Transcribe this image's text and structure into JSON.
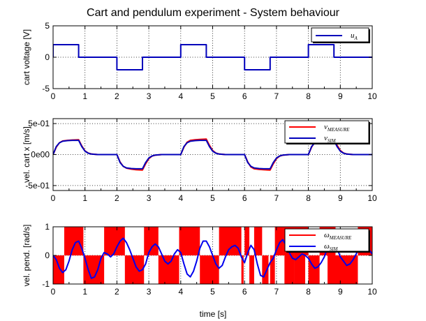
{
  "title": "Cart and pendulum experiment - System behaviour",
  "xlabel": "time [s]",
  "colors": {
    "blue": "#0000bb",
    "red": "#ff0000",
    "frame": "#000000",
    "grid": "#000000"
  },
  "chart_data": [
    {
      "type": "line",
      "ylabel": "cart voltage [V]",
      "xlim": [
        0,
        10
      ],
      "ylim": [
        -5,
        5
      ],
      "xticks": [
        0,
        1,
        2,
        3,
        4,
        5,
        6,
        7,
        8,
        9,
        10
      ],
      "xtick_labels": [
        "0",
        "1",
        "2",
        "3",
        "4",
        "5",
        "6",
        "7",
        "8",
        "9",
        "10"
      ],
      "yticks": [
        -5,
        0,
        5
      ],
      "ytick_labels": [
        "-5",
        "0",
        "5"
      ],
      "grid": true,
      "legend": "top-right",
      "series": [
        {
          "name": "u_A",
          "legend_main": "u",
          "legend_sub": "A",
          "color": "#0000bb",
          "x": [
            0,
            0,
            0.8,
            0.8,
            2.0,
            2.0,
            2.8,
            2.8,
            4.0,
            4.0,
            4.8,
            4.8,
            6.0,
            6.0,
            6.8,
            6.8,
            8.0,
            8.0,
            8.8,
            8.8,
            10
          ],
          "y": [
            0,
            2,
            2,
            0,
            0,
            -2,
            -2,
            0,
            0,
            2,
            2,
            0,
            0,
            -2,
            -2,
            0,
            0,
            2,
            2,
            0,
            0
          ]
        }
      ]
    },
    {
      "type": "line",
      "ylabel": "vel. cart x [m/s]",
      "xlim": [
        0,
        10
      ],
      "ylim": [
        -0.58,
        0.58
      ],
      "xticks": [
        0,
        1,
        2,
        3,
        4,
        5,
        6,
        7,
        8,
        9,
        10
      ],
      "xtick_labels": [
        "0",
        "1",
        "2",
        "3",
        "4",
        "5",
        "6",
        "7",
        "8",
        "9",
        "10"
      ],
      "yticks": [
        -0.5,
        0,
        0.5
      ],
      "ytick_labels": [
        "-5e-01",
        "0e00",
        "5e-01"
      ],
      "grid": true,
      "legend": "top-right",
      "series": [
        {
          "name": "v_MEASURE",
          "legend_main": "v",
          "legend_sub": "MEASURE",
          "color": "#ff0000",
          "x": [
            0,
            0.1,
            0.2,
            0.3,
            0.45,
            0.6,
            0.8,
            0.9,
            1.0,
            1.1,
            1.2,
            1.4,
            1.7,
            2.0,
            2.1,
            2.2,
            2.3,
            2.45,
            2.6,
            2.8,
            2.9,
            3.0,
            3.1,
            3.2,
            3.4,
            3.7,
            4.0,
            4.1,
            4.2,
            4.3,
            4.45,
            4.6,
            4.8,
            4.9,
            5.0,
            5.1,
            5.2,
            5.4,
            5.7,
            6.0,
            6.1,
            6.2,
            6.3,
            6.45,
            6.6,
            6.8,
            6.9,
            7.0,
            7.1,
            7.2,
            7.4,
            7.7,
            8.0,
            8.1,
            8.2,
            8.3,
            8.45,
            8.6,
            8.8,
            8.9,
            9.0,
            9.1,
            9.2,
            9.4,
            10
          ],
          "y": [
            0,
            0.12,
            0.19,
            0.22,
            0.23,
            0.235,
            0.24,
            0.14,
            0.06,
            0.025,
            0.01,
            0,
            0,
            0,
            -0.12,
            -0.19,
            -0.22,
            -0.235,
            -0.245,
            -0.25,
            -0.15,
            -0.065,
            -0.025,
            -0.01,
            0,
            0,
            0,
            0.12,
            0.2,
            0.23,
            0.24,
            0.245,
            0.25,
            0.15,
            0.065,
            0.025,
            0.01,
            0,
            0,
            0,
            -0.12,
            -0.2,
            -0.23,
            -0.24,
            -0.245,
            -0.25,
            -0.15,
            -0.065,
            -0.025,
            -0.01,
            0,
            0,
            0,
            0.12,
            0.2,
            0.23,
            0.24,
            0.245,
            0.25,
            0.15,
            0.065,
            0.025,
            0.01,
            0,
            0
          ]
        },
        {
          "name": "v_SIM",
          "legend_main": "v",
          "legend_sub": "SIM",
          "color": "#0000bb",
          "x": [
            0,
            0.1,
            0.2,
            0.3,
            0.45,
            0.6,
            0.8,
            0.9,
            1.0,
            1.1,
            1.2,
            1.4,
            1.7,
            2.0,
            2.1,
            2.2,
            2.3,
            2.45,
            2.6,
            2.8,
            2.9,
            3.0,
            3.1,
            3.2,
            3.4,
            3.7,
            4.0,
            4.1,
            4.2,
            4.3,
            4.45,
            4.6,
            4.8,
            4.9,
            5.0,
            5.1,
            5.2,
            5.4,
            5.7,
            6.0,
            6.1,
            6.2,
            6.3,
            6.45,
            6.6,
            6.8,
            6.9,
            7.0,
            7.1,
            7.2,
            7.4,
            7.7,
            8.0,
            8.1,
            8.2,
            8.3,
            8.45,
            8.6,
            8.8,
            8.9,
            9.0,
            9.1,
            9.2,
            9.4,
            10
          ],
          "y": [
            0,
            0.13,
            0.19,
            0.215,
            0.225,
            0.23,
            0.23,
            0.13,
            0.055,
            0.022,
            0.008,
            0,
            0,
            0,
            -0.13,
            -0.19,
            -0.215,
            -0.225,
            -0.23,
            -0.23,
            -0.13,
            -0.055,
            -0.022,
            -0.008,
            0,
            0,
            0,
            0.13,
            0.19,
            0.215,
            0.225,
            0.23,
            0.23,
            0.13,
            0.055,
            0.022,
            0.008,
            0,
            0,
            0,
            -0.13,
            -0.19,
            -0.215,
            -0.225,
            -0.23,
            -0.23,
            -0.13,
            -0.055,
            -0.022,
            -0.008,
            0,
            0,
            0,
            0.13,
            0.19,
            0.215,
            0.225,
            0.23,
            0.23,
            0.13,
            0.055,
            0.022,
            0.008,
            0,
            0
          ]
        }
      ]
    },
    {
      "type": "line",
      "ylabel": "vel. pend. [rad/s]",
      "xlim": [
        0,
        10
      ],
      "ylim": [
        -1,
        1
      ],
      "xticks": [
        0,
        1,
        2,
        3,
        4,
        5,
        6,
        7,
        8,
        9,
        10
      ],
      "xtick_labels": [
        "0",
        "1",
        "2",
        "3",
        "4",
        "5",
        "6",
        "7",
        "8",
        "9",
        "10"
      ],
      "yticks": [
        -1,
        0,
        1
      ],
      "ytick_labels": [
        "-1",
        "0",
        "1"
      ],
      "grid": true,
      "legend": "top-right",
      "series": [
        {
          "name": "ω_MEASURE",
          "legend_main": "ω",
          "legend_sub": "MEASURE",
          "color": "#ff0000",
          "style": "filled-bands",
          "segments": [
            {
              "x0": 0.0,
              "x1": 0.35,
              "y": -1
            },
            {
              "x0": 0.35,
              "x1": 0.95,
              "y": 1
            },
            {
              "x0": 0.95,
              "x1": 1.6,
              "y": -1
            },
            {
              "x0": 1.6,
              "x1": 2.25,
              "y": 1
            },
            {
              "x0": 2.25,
              "x1": 2.85,
              "y": -1
            },
            {
              "x0": 2.85,
              "x1": 3.3,
              "y": 1
            },
            {
              "x0": 3.3,
              "x1": 3.95,
              "y": -1
            },
            {
              "x0": 3.95,
              "x1": 4.6,
              "y": 1
            },
            {
              "x0": 4.6,
              "x1": 5.2,
              "y": -1
            },
            {
              "x0": 5.2,
              "x1": 5.9,
              "y": 1
            },
            {
              "x0": 5.9,
              "x1": 5.97,
              "y": -1
            },
            {
              "x0": 6.0,
              "x1": 6.15,
              "y": 1
            },
            {
              "x0": 6.15,
              "x1": 6.3,
              "y": -1
            },
            {
              "x0": 6.3,
              "x1": 6.55,
              "y": 1
            },
            {
              "x0": 6.55,
              "x1": 6.75,
              "y": -1
            },
            {
              "x0": 6.8,
              "x1": 6.95,
              "y": -1
            },
            {
              "x0": 6.95,
              "x1": 7.2,
              "y": 1
            },
            {
              "x0": 7.2,
              "x1": 7.55,
              "y": 1
            },
            {
              "x0": 7.55,
              "x1": 8.0,
              "y": 1
            },
            {
              "x0": 7.55,
              "x1": 7.9,
              "y": -1
            },
            {
              "x0": 8.0,
              "x1": 8.35,
              "y": -1
            },
            {
              "x0": 8.35,
              "x1": 8.85,
              "y": 1
            },
            {
              "x0": 8.85,
              "x1": 9.55,
              "y": -1
            },
            {
              "x0": 9.55,
              "x1": 10.0,
              "y": 1
            },
            {
              "x0": 7.25,
              "x1": 7.55,
              "y": -1
            },
            {
              "x0": 8.6,
              "x1": 9.05,
              "y": -1
            }
          ]
        },
        {
          "name": "ω_SIM",
          "legend_main": "ω",
          "legend_sub": "SIM",
          "color": "#0000ee",
          "x": [
            0,
            0.1,
            0.2,
            0.3,
            0.4,
            0.5,
            0.6,
            0.7,
            0.8,
            0.9,
            1.0,
            1.1,
            1.2,
            1.3,
            1.4,
            1.5,
            1.6,
            1.7,
            1.8,
            1.9,
            2.0,
            2.1,
            2.2,
            2.3,
            2.4,
            2.5,
            2.6,
            2.7,
            2.8,
            2.9,
            3.0,
            3.1,
            3.2,
            3.3,
            3.4,
            3.5,
            3.6,
            3.7,
            3.8,
            3.9,
            4.0,
            4.1,
            4.2,
            4.3,
            4.4,
            4.5,
            4.6,
            4.7,
            4.8,
            4.9,
            5.0,
            5.1,
            5.2,
            5.3,
            5.4,
            5.5,
            5.6,
            5.7,
            5.8,
            5.9,
            6.0,
            6.1,
            6.2,
            6.3,
            6.4,
            6.5,
            6.6,
            6.7,
            6.8,
            6.9,
            7.0,
            7.1,
            7.2,
            7.3,
            7.4,
            7.5,
            7.6,
            7.7,
            7.8,
            7.9,
            8.0,
            8.1,
            8.2,
            8.3,
            8.4,
            8.5,
            8.6,
            8.7,
            8.8,
            8.9,
            9.0,
            9.1,
            9.2,
            9.3,
            9.4,
            9.5,
            9.6,
            9.7,
            9.8,
            9.9,
            10.0
          ],
          "y": [
            0,
            -0.15,
            -0.45,
            -0.6,
            -0.5,
            -0.2,
            0.2,
            0.45,
            0.5,
            0.25,
            -0.1,
            -0.5,
            -0.8,
            -0.75,
            -0.5,
            -0.1,
            0.1,
            0.05,
            -0.05,
            0.05,
            0.3,
            0.5,
            0.6,
            0.45,
            0.2,
            -0.1,
            -0.4,
            -0.55,
            -0.5,
            -0.3,
            0.1,
            0.3,
            0.4,
            0.3,
            0.05,
            -0.2,
            -0.3,
            -0.2,
            0.05,
            0.2,
            0.1,
            -0.3,
            -0.65,
            -0.75,
            -0.55,
            -0.2,
            0.25,
            0.5,
            0.5,
            0.3,
            0.0,
            -0.3,
            -0.45,
            -0.35,
            -0.05,
            0.2,
            0.3,
            0.35,
            0.25,
            -0.05,
            -0.25,
            0.1,
            0.35,
            0.2,
            -0.3,
            -0.7,
            -0.75,
            -0.5,
            -0.25,
            -0.1,
            0.2,
            0.45,
            0.55,
            0.35,
            0.1,
            -0.1,
            -0.15,
            -0.05,
            0.05,
            0.0,
            -0.1,
            -0.3,
            -0.45,
            -0.4,
            -0.25,
            -0.05,
            0.25,
            0.45,
            0.45,
            0.25,
            -0.05,
            -0.2,
            -0.35,
            -0.3,
            -0.15,
            0.05,
            0.3,
            0.45,
            0.45,
            0.2,
            0.05
          ]
        }
      ]
    }
  ]
}
